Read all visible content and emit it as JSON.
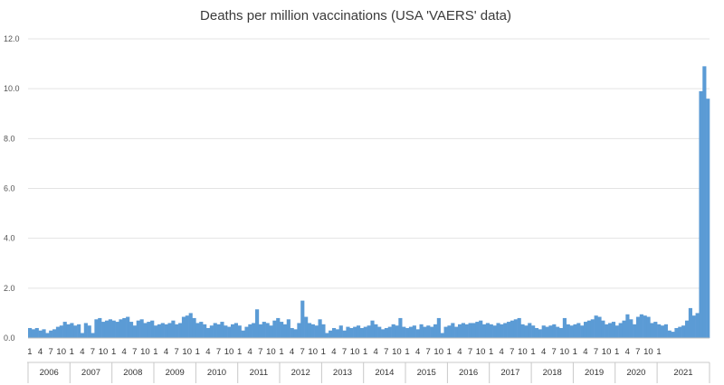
{
  "chart_data": {
    "type": "bar",
    "title": "Deaths per million vaccinations (USA 'VAERS' data)",
    "xlabel": "",
    "ylabel": "",
    "ylim": [
      0,
      12
    ],
    "y_ticks": [
      "0.0",
      "2.0",
      "4.0",
      "6.0",
      "8.0",
      "10.0",
      "12.0"
    ],
    "grid": true,
    "legend": "none",
    "bar_color": "#5b9bd5",
    "month_tick_labels": [
      "1",
      "4",
      "7",
      "10"
    ],
    "years": [
      "2006",
      "2007",
      "2008",
      "2009",
      "2010",
      "2011",
      "2012",
      "2013",
      "2014",
      "2015",
      "2016",
      "2017",
      "2018",
      "2019",
      "2020",
      "2021"
    ],
    "last_year_month_labels": [
      "1"
    ],
    "values": [
      0.4,
      0.35,
      0.4,
      0.3,
      0.35,
      0.2,
      0.3,
      0.35,
      0.45,
      0.5,
      0.65,
      0.55,
      0.6,
      0.5,
      0.55,
      0.2,
      0.6,
      0.5,
      0.2,
      0.75,
      0.8,
      0.65,
      0.7,
      0.75,
      0.7,
      0.65,
      0.75,
      0.8,
      0.85,
      0.65,
      0.5,
      0.7,
      0.75,
      0.6,
      0.65,
      0.7,
      0.5,
      0.55,
      0.6,
      0.55,
      0.6,
      0.7,
      0.55,
      0.6,
      0.85,
      0.9,
      1.0,
      0.8,
      0.6,
      0.65,
      0.55,
      0.4,
      0.5,
      0.6,
      0.55,
      0.65,
      0.5,
      0.45,
      0.55,
      0.6,
      0.5,
      0.3,
      0.45,
      0.55,
      0.6,
      1.15,
      0.55,
      0.65,
      0.6,
      0.5,
      0.7,
      0.8,
      0.65,
      0.55,
      0.75,
      0.4,
      0.35,
      0.6,
      1.5,
      0.85,
      0.6,
      0.55,
      0.5,
      0.75,
      0.55,
      0.2,
      0.3,
      0.4,
      0.35,
      0.5,
      0.3,
      0.45,
      0.4,
      0.45,
      0.5,
      0.4,
      0.45,
      0.5,
      0.7,
      0.55,
      0.45,
      0.35,
      0.4,
      0.45,
      0.55,
      0.5,
      0.8,
      0.45,
      0.4,
      0.45,
      0.5,
      0.35,
      0.55,
      0.45,
      0.5,
      0.45,
      0.55,
      0.8,
      0.2,
      0.45,
      0.5,
      0.6,
      0.45,
      0.55,
      0.6,
      0.55,
      0.6,
      0.6,
      0.65,
      0.7,
      0.55,
      0.6,
      0.55,
      0.5,
      0.6,
      0.55,
      0.6,
      0.65,
      0.7,
      0.75,
      0.8,
      0.55,
      0.5,
      0.6,
      0.5,
      0.4,
      0.35,
      0.5,
      0.45,
      0.5,
      0.55,
      0.45,
      0.4,
      0.8,
      0.55,
      0.5,
      0.55,
      0.6,
      0.5,
      0.65,
      0.7,
      0.75,
      0.9,
      0.85,
      0.7,
      0.55,
      0.6,
      0.65,
      0.5,
      0.6,
      0.7,
      0.95,
      0.75,
      0.55,
      0.85,
      0.95,
      0.9,
      0.85,
      0.6,
      0.65,
      0.55,
      0.5,
      0.55,
      0.3,
      0.25,
      0.4,
      0.45,
      0.5,
      0.7,
      1.2,
      0.9,
      1.0,
      9.9,
      10.9,
      9.6
    ]
  }
}
